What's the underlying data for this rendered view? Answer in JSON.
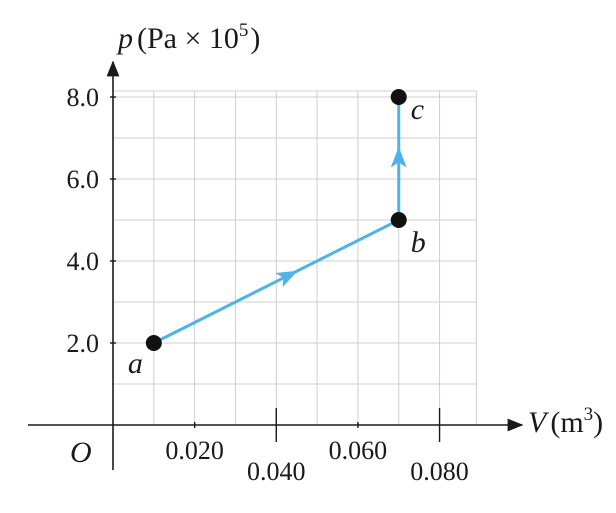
{
  "chart_data": {
    "type": "line",
    "xlabel": "V (m³)",
    "ylabel": "p (Pa × 10⁵)",
    "x_axis": {
      "variable": "V",
      "unit": "m",
      "unit_exponent": "3"
    },
    "y_axis": {
      "variable": "p",
      "unit": "Pa × 10",
      "unit_exponent": "5"
    },
    "origin_label": "O",
    "xlim": [
      0,
      0.09
    ],
    "ylim": [
      0,
      9
    ],
    "x_ticks": [
      {
        "value": 0.02,
        "label": "0.020"
      },
      {
        "value": 0.04,
        "label": "0.040"
      },
      {
        "value": 0.06,
        "label": "0.060"
      },
      {
        "value": 0.08,
        "label": "0.080"
      }
    ],
    "y_ticks": [
      {
        "value": 2.0,
        "label": "2.0"
      },
      {
        "value": 4.0,
        "label": "4.0"
      },
      {
        "value": 6.0,
        "label": "6.0"
      },
      {
        "value": 8.0,
        "label": "8.0"
      }
    ],
    "grid": true,
    "grid_step": {
      "x": 0.01,
      "y": 1.0
    },
    "points": [
      {
        "name": "a",
        "x": 0.01,
        "y": 2.0
      },
      {
        "name": "b",
        "x": 0.07,
        "y": 5.0
      },
      {
        "name": "c",
        "x": 0.07,
        "y": 8.0
      }
    ],
    "path_segments": [
      {
        "from": "a",
        "to": "b"
      },
      {
        "from": "b",
        "to": "c"
      }
    ],
    "colors": {
      "path": "#4fb3e8",
      "points": "#111111",
      "grid": "#cfcfcf",
      "axes": "#1a1a1a"
    }
  }
}
